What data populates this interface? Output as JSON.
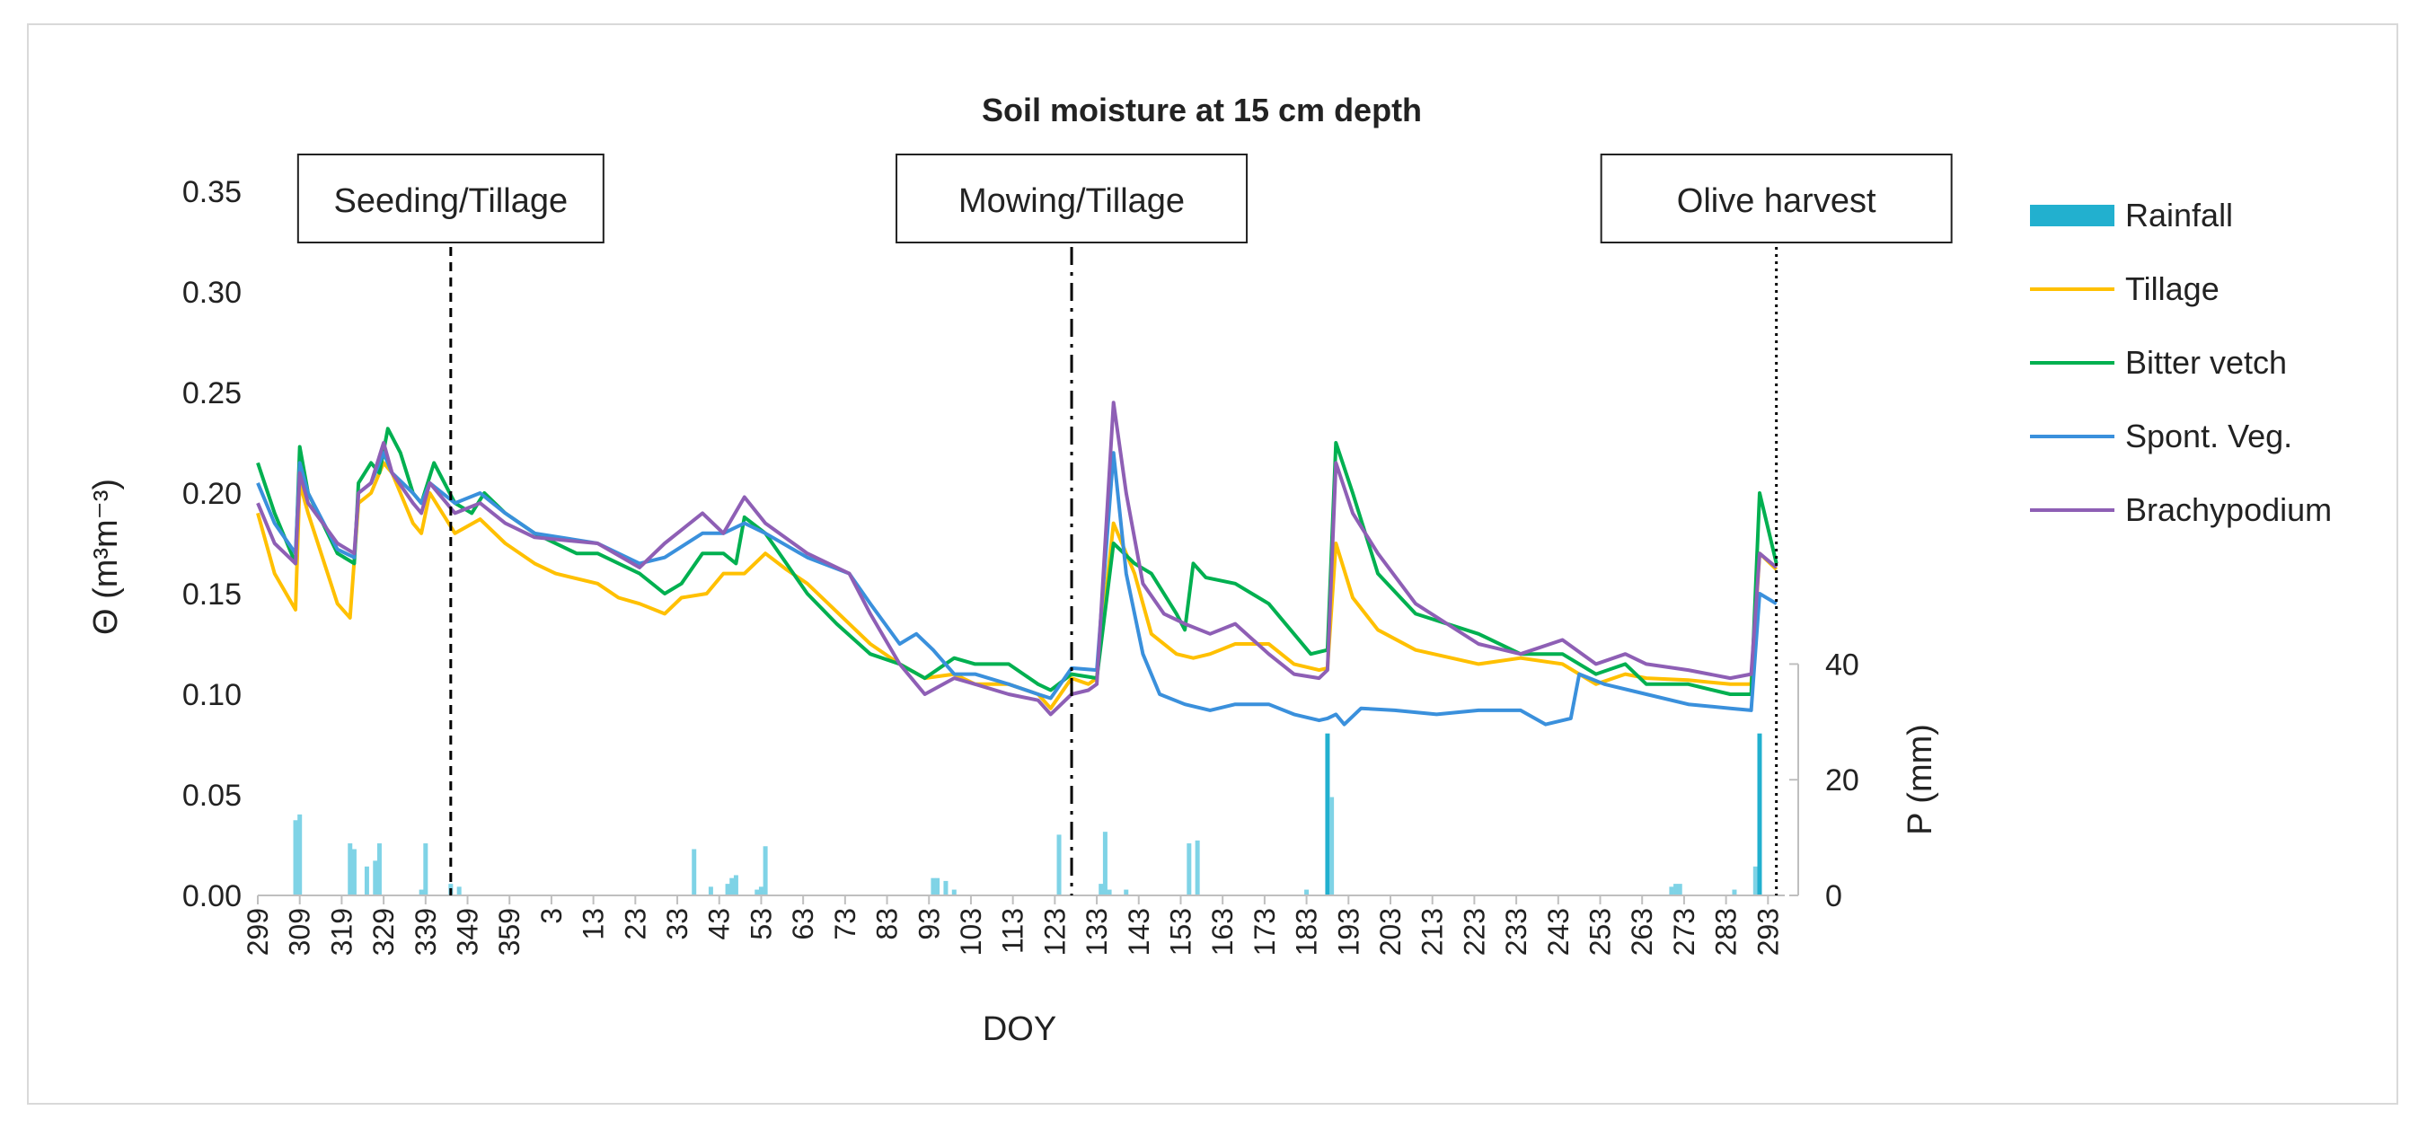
{
  "chart_data": {
    "type": "line",
    "title": "Soil moisture at 15 cm depth",
    "xlabel": "DOY",
    "ylabel": "Θ (m³m⁻³)",
    "y2label": "P (mm)",
    "ylim": [
      0,
      0.35
    ],
    "y2lim": [
      0,
      40
    ],
    "yticks": [
      "0.00",
      "0.05",
      "0.10",
      "0.15",
      "0.20",
      "0.25",
      "0.30",
      "0.35"
    ],
    "y2ticks": [
      "0",
      "20",
      "40"
    ],
    "xticks": [
      "299",
      "309",
      "319",
      "329",
      "339",
      "349",
      "359",
      "3",
      "13",
      "23",
      "33",
      "43",
      "53",
      "63",
      "73",
      "83",
      "93",
      "103",
      "113",
      "123",
      "133",
      "143",
      "153",
      "163",
      "173",
      "183",
      "193",
      "203",
      "213",
      "223",
      "233",
      "243",
      "253",
      "263",
      "273",
      "283",
      "293"
    ],
    "legend": [
      "Rainfall",
      "Tillage",
      "Bitter vetch",
      "Spont. Veg.",
      "Brachypodium"
    ],
    "annotations": [
      {
        "label": "Seeding/Tillage",
        "day": 345,
        "style": "dashed"
      },
      {
        "label": "Mowing/Tillage",
        "day": 493,
        "style": "dashdot"
      },
      {
        "label": "Olive harvest",
        "day": 661,
        "style": "dotted"
      }
    ],
    "series": [
      {
        "name": "Tillage",
        "color": "#ffc000",
        "points": [
          [
            299,
            0.19
          ],
          [
            303,
            0.16
          ],
          [
            308,
            0.142
          ],
          [
            309,
            0.205
          ],
          [
            311,
            0.19
          ],
          [
            318,
            0.145
          ],
          [
            321,
            0.138
          ],
          [
            323,
            0.195
          ],
          [
            326,
            0.2
          ],
          [
            329,
            0.215
          ],
          [
            331,
            0.21
          ],
          [
            336,
            0.185
          ],
          [
            338,
            0.18
          ],
          [
            340,
            0.2
          ],
          [
            346,
            0.18
          ],
          [
            352,
            0.187
          ],
          [
            358,
            0.175
          ],
          [
            365,
            0.165
          ],
          [
            370,
            0.16
          ],
          [
            380,
            0.155
          ],
          [
            385,
            0.148
          ],
          [
            390,
            0.145
          ],
          [
            396,
            0.14
          ],
          [
            400,
            0.148
          ],
          [
            406,
            0.15
          ],
          [
            410,
            0.16
          ],
          [
            415,
            0.16
          ],
          [
            420,
            0.17
          ],
          [
            425,
            0.162
          ],
          [
            430,
            0.155
          ],
          [
            435,
            0.145
          ],
          [
            440,
            0.135
          ],
          [
            445,
            0.125
          ],
          [
            452,
            0.115
          ],
          [
            458,
            0.108
          ],
          [
            465,
            0.11
          ],
          [
            470,
            0.105
          ],
          [
            478,
            0.105
          ],
          [
            485,
            0.1
          ],
          [
            488,
            0.093
          ],
          [
            493,
            0.108
          ],
          [
            497,
            0.105
          ],
          [
            499,
            0.108
          ],
          [
            503,
            0.185
          ],
          [
            508,
            0.16
          ],
          [
            512,
            0.13
          ],
          [
            518,
            0.12
          ],
          [
            522,
            0.118
          ],
          [
            526,
            0.12
          ],
          [
            532,
            0.125
          ],
          [
            540,
            0.125
          ],
          [
            546,
            0.115
          ],
          [
            552,
            0.112
          ],
          [
            554,
            0.113
          ],
          [
            556,
            0.175
          ],
          [
            560,
            0.148
          ],
          [
            566,
            0.132
          ],
          [
            575,
            0.122
          ],
          [
            590,
            0.115
          ],
          [
            600,
            0.118
          ],
          [
            610,
            0.115
          ],
          [
            618,
            0.105
          ],
          [
            625,
            0.11
          ],
          [
            630,
            0.108
          ],
          [
            640,
            0.107
          ],
          [
            650,
            0.105
          ],
          [
            655,
            0.105
          ],
          [
            657,
            0.17
          ],
          [
            661,
            0.162
          ]
        ]
      },
      {
        "name": "Bitter vetch",
        "color": "#00b050",
        "points": [
          [
            299,
            0.215
          ],
          [
            303,
            0.19
          ],
          [
            308,
            0.165
          ],
          [
            309,
            0.223
          ],
          [
            311,
            0.2
          ],
          [
            318,
            0.17
          ],
          [
            322,
            0.165
          ],
          [
            323,
            0.205
          ],
          [
            326,
            0.215
          ],
          [
            328,
            0.21
          ],
          [
            330,
            0.232
          ],
          [
            333,
            0.22
          ],
          [
            336,
            0.2
          ],
          [
            338,
            0.195
          ],
          [
            341,
            0.215
          ],
          [
            346,
            0.195
          ],
          [
            350,
            0.19
          ],
          [
            353,
            0.2
          ],
          [
            358,
            0.19
          ],
          [
            365,
            0.18
          ],
          [
            375,
            0.17
          ],
          [
            380,
            0.17
          ],
          [
            390,
            0.16
          ],
          [
            396,
            0.15
          ],
          [
            400,
            0.155
          ],
          [
            405,
            0.17
          ],
          [
            410,
            0.17
          ],
          [
            413,
            0.165
          ],
          [
            415,
            0.188
          ],
          [
            420,
            0.18
          ],
          [
            425,
            0.165
          ],
          [
            430,
            0.15
          ],
          [
            437,
            0.135
          ],
          [
            445,
            0.12
          ],
          [
            452,
            0.115
          ],
          [
            458,
            0.108
          ],
          [
            465,
            0.118
          ],
          [
            470,
            0.115
          ],
          [
            478,
            0.115
          ],
          [
            485,
            0.105
          ],
          [
            488,
            0.102
          ],
          [
            493,
            0.11
          ],
          [
            499,
            0.108
          ],
          [
            503,
            0.175
          ],
          [
            508,
            0.165
          ],
          [
            512,
            0.16
          ],
          [
            518,
            0.14
          ],
          [
            520,
            0.132
          ],
          [
            522,
            0.165
          ],
          [
            525,
            0.158
          ],
          [
            532,
            0.155
          ],
          [
            540,
            0.145
          ],
          [
            546,
            0.13
          ],
          [
            550,
            0.12
          ],
          [
            554,
            0.122
          ],
          [
            556,
            0.225
          ],
          [
            560,
            0.2
          ],
          [
            566,
            0.16
          ],
          [
            575,
            0.14
          ],
          [
            590,
            0.13
          ],
          [
            600,
            0.12
          ],
          [
            610,
            0.12
          ],
          [
            618,
            0.11
          ],
          [
            625,
            0.115
          ],
          [
            630,
            0.105
          ],
          [
            640,
            0.105
          ],
          [
            650,
            0.1
          ],
          [
            655,
            0.1
          ],
          [
            657,
            0.2
          ],
          [
            661,
            0.165
          ]
        ]
      },
      {
        "name": "Spont. Veg.",
        "color": "#3a90dc",
        "points": [
          [
            299,
            0.205
          ],
          [
            303,
            0.185
          ],
          [
            308,
            0.17
          ],
          [
            309,
            0.215
          ],
          [
            311,
            0.2
          ],
          [
            318,
            0.172
          ],
          [
            322,
            0.168
          ],
          [
            323,
            0.2
          ],
          [
            326,
            0.205
          ],
          [
            329,
            0.22
          ],
          [
            331,
            0.21
          ],
          [
            336,
            0.2
          ],
          [
            338,
            0.195
          ],
          [
            340,
            0.205
          ],
          [
            346,
            0.195
          ],
          [
            352,
            0.2
          ],
          [
            358,
            0.19
          ],
          [
            365,
            0.18
          ],
          [
            380,
            0.175
          ],
          [
            390,
            0.165
          ],
          [
            396,
            0.168
          ],
          [
            405,
            0.18
          ],
          [
            410,
            0.18
          ],
          [
            415,
            0.185
          ],
          [
            420,
            0.18
          ],
          [
            430,
            0.168
          ],
          [
            440,
            0.16
          ],
          [
            445,
            0.145
          ],
          [
            452,
            0.125
          ],
          [
            456,
            0.13
          ],
          [
            460,
            0.122
          ],
          [
            465,
            0.11
          ],
          [
            470,
            0.11
          ],
          [
            478,
            0.105
          ],
          [
            485,
            0.1
          ],
          [
            488,
            0.098
          ],
          [
            493,
            0.113
          ],
          [
            499,
            0.112
          ],
          [
            503,
            0.22
          ],
          [
            506,
            0.16
          ],
          [
            510,
            0.12
          ],
          [
            514,
            0.1
          ],
          [
            520,
            0.095
          ],
          [
            526,
            0.092
          ],
          [
            532,
            0.095
          ],
          [
            540,
            0.095
          ],
          [
            546,
            0.09
          ],
          [
            552,
            0.087
          ],
          [
            554,
            0.088
          ],
          [
            556,
            0.09
          ],
          [
            558,
            0.085
          ],
          [
            562,
            0.093
          ],
          [
            570,
            0.092
          ],
          [
            580,
            0.09
          ],
          [
            590,
            0.092
          ],
          [
            600,
            0.092
          ],
          [
            606,
            0.085
          ],
          [
            612,
            0.088
          ],
          [
            614,
            0.11
          ],
          [
            620,
            0.105
          ],
          [
            630,
            0.1
          ],
          [
            640,
            0.095
          ],
          [
            650,
            0.093
          ],
          [
            655,
            0.092
          ],
          [
            657,
            0.15
          ],
          [
            661,
            0.145
          ]
        ]
      },
      {
        "name": "Brachypodium",
        "color": "#8e5fb5",
        "points": [
          [
            299,
            0.195
          ],
          [
            303,
            0.175
          ],
          [
            308,
            0.165
          ],
          [
            309,
            0.21
          ],
          [
            311,
            0.195
          ],
          [
            318,
            0.175
          ],
          [
            322,
            0.17
          ],
          [
            323,
            0.2
          ],
          [
            326,
            0.205
          ],
          [
            329,
            0.225
          ],
          [
            331,
            0.21
          ],
          [
            336,
            0.195
          ],
          [
            338,
            0.19
          ],
          [
            340,
            0.205
          ],
          [
            346,
            0.19
          ],
          [
            352,
            0.195
          ],
          [
            358,
            0.185
          ],
          [
            365,
            0.178
          ],
          [
            380,
            0.175
          ],
          [
            390,
            0.163
          ],
          [
            396,
            0.175
          ],
          [
            405,
            0.19
          ],
          [
            410,
            0.18
          ],
          [
            415,
            0.198
          ],
          [
            420,
            0.185
          ],
          [
            430,
            0.17
          ],
          [
            440,
            0.16
          ],
          [
            445,
            0.14
          ],
          [
            452,
            0.115
          ],
          [
            458,
            0.1
          ],
          [
            465,
            0.108
          ],
          [
            470,
            0.105
          ],
          [
            478,
            0.1
          ],
          [
            485,
            0.097
          ],
          [
            488,
            0.09
          ],
          [
            493,
            0.1
          ],
          [
            497,
            0.102
          ],
          [
            499,
            0.105
          ],
          [
            503,
            0.245
          ],
          [
            506,
            0.2
          ],
          [
            510,
            0.155
          ],
          [
            515,
            0.14
          ],
          [
            520,
            0.135
          ],
          [
            526,
            0.13
          ],
          [
            532,
            0.135
          ],
          [
            540,
            0.12
          ],
          [
            546,
            0.11
          ],
          [
            552,
            0.108
          ],
          [
            554,
            0.112
          ],
          [
            556,
            0.215
          ],
          [
            560,
            0.19
          ],
          [
            566,
            0.17
          ],
          [
            575,
            0.145
          ],
          [
            590,
            0.125
          ],
          [
            600,
            0.12
          ],
          [
            610,
            0.127
          ],
          [
            618,
            0.115
          ],
          [
            625,
            0.12
          ],
          [
            630,
            0.115
          ],
          [
            640,
            0.112
          ],
          [
            650,
            0.108
          ],
          [
            655,
            0.11
          ],
          [
            657,
            0.17
          ],
          [
            661,
            0.163
          ]
        ]
      }
    ],
    "rainfall": [
      [
        308,
        13
      ],
      [
        309,
        14
      ],
      [
        321,
        9
      ],
      [
        322,
        8
      ],
      [
        325,
        5
      ],
      [
        327,
        6
      ],
      [
        328,
        9
      ],
      [
        338,
        1
      ],
      [
        339,
        9
      ],
      [
        345,
        2
      ],
      [
        347,
        1.5
      ],
      [
        403,
        8
      ],
      [
        407,
        1.5
      ],
      [
        411,
        2
      ],
      [
        412,
        3
      ],
      [
        413,
        3.5
      ],
      [
        418,
        1
      ],
      [
        419,
        1.5
      ],
      [
        420,
        8.5
      ],
      [
        460,
        3
      ],
      [
        461,
        3
      ],
      [
        463,
        2.5
      ],
      [
        465,
        1
      ],
      [
        490,
        10.5
      ],
      [
        500,
        2
      ],
      [
        501,
        11
      ],
      [
        502,
        1
      ],
      [
        506,
        1
      ],
      [
        521,
        9
      ],
      [
        523,
        9.5
      ],
      [
        549,
        1
      ],
      [
        554,
        28
      ],
      [
        555,
        17
      ],
      [
        636,
        1.5
      ],
      [
        637,
        2
      ],
      [
        638,
        2
      ],
      [
        651,
        1
      ],
      [
        656,
        5
      ],
      [
        657,
        28
      ]
    ]
  }
}
